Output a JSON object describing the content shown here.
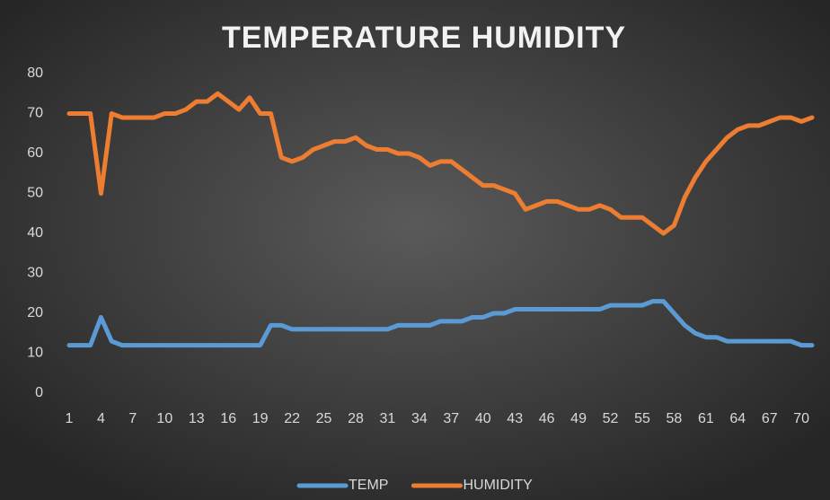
{
  "chart_data": {
    "type": "line",
    "title": "TEMPERATURE HUMIDITY",
    "categories": [
      "1",
      null,
      null,
      "4",
      null,
      null,
      "7",
      null,
      null,
      "10",
      null,
      null,
      "13",
      null,
      null,
      "16",
      null,
      null,
      "19",
      null,
      null,
      "22",
      null,
      null,
      "25",
      null,
      null,
      "28",
      null,
      null,
      "31",
      null,
      null,
      "34",
      null,
      null,
      "37",
      null,
      null,
      "40",
      null,
      null,
      "43",
      null,
      null,
      "46",
      null,
      null,
      "49",
      null,
      null,
      "52",
      null,
      null,
      "55",
      null,
      null,
      "58",
      null,
      null,
      "61",
      null,
      null,
      "64",
      null,
      null,
      "67",
      null,
      null,
      "70",
      null
    ],
    "series": [
      {
        "name": "TEMP",
        "color": "#5b9bd5",
        "values": [
          12,
          12,
          12,
          19,
          13,
          12,
          12,
          12,
          12,
          12,
          12,
          12,
          12,
          12,
          12,
          12,
          12,
          12,
          12,
          17,
          17,
          16,
          16,
          16,
          16,
          16,
          16,
          16,
          16,
          16,
          16,
          17,
          17,
          17,
          17,
          18,
          18,
          18,
          19,
          19,
          20,
          20,
          21,
          21,
          21,
          21,
          21,
          21,
          21,
          21,
          21,
          22,
          22,
          22,
          22,
          23,
          23,
          20,
          17,
          15,
          14,
          14,
          13,
          13,
          13,
          13,
          13,
          13,
          13,
          12,
          12
        ]
      },
      {
        "name": "HUMIDITY",
        "color": "#ed7d31",
        "values": [
          70,
          70,
          70,
          50,
          70,
          69,
          69,
          69,
          69,
          70,
          70,
          71,
          73,
          73,
          75,
          73,
          71,
          74,
          70,
          70,
          59,
          58,
          59,
          61,
          62,
          63,
          63,
          64,
          62,
          61,
          61,
          60,
          60,
          59,
          57,
          58,
          58,
          56,
          54,
          52,
          52,
          51,
          50,
          46,
          47,
          48,
          48,
          47,
          46,
          46,
          47,
          46,
          44,
          44,
          44,
          42,
          40,
          42,
          49,
          54,
          58,
          61,
          64,
          66,
          67,
          67,
          68,
          69,
          69,
          68,
          69
        ]
      }
    ],
    "ylim": [
      0,
      80
    ],
    "yticks": [
      0,
      10,
      20,
      30,
      40,
      50,
      60,
      70,
      80
    ],
    "grid": false,
    "legend": "bottom"
  }
}
